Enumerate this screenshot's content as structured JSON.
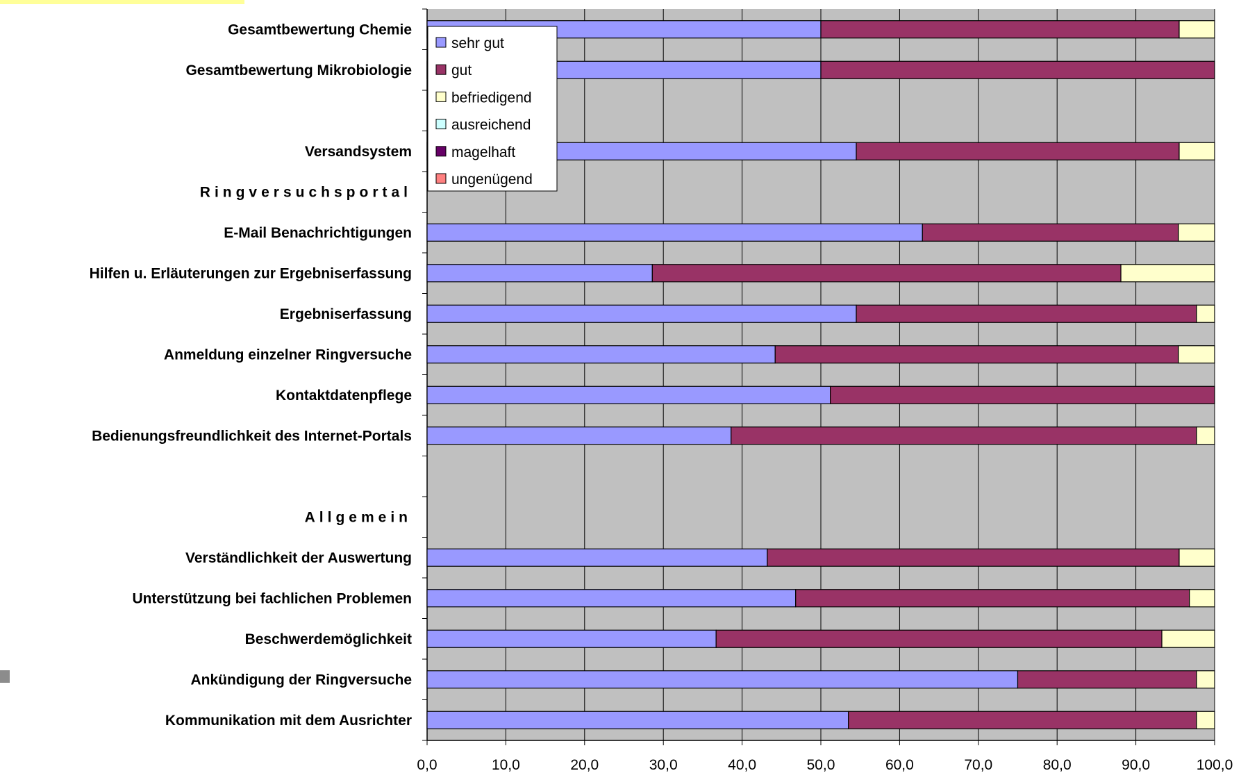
{
  "chart_data": {
    "type": "bar",
    "orientation": "horizontal",
    "stacked": true,
    "title": "",
    "xlabel": "",
    "ylabel": "",
    "xlim": [
      0,
      100
    ],
    "x_ticks": [
      "0,0",
      "10,0",
      "20,0",
      "30,0",
      "40,0",
      "50,0",
      "60,0",
      "70,0",
      "80,0",
      "90,0",
      "100,0"
    ],
    "grid": true,
    "legend_position": "top-left",
    "categories": [
      "Gesamtbewertung Chemie",
      "Gesamtbewertung Mikrobiologie",
      "",
      "Versandsystem",
      "Ringversuchsportal",
      "E-Mail Benachrichtigungen",
      "Hilfen u. Erläuterungen zur Ergebniserfassung",
      "Ergebniserfassung",
      "Anmeldung einzelner Ringversuche",
      "Kontaktdatenpflege",
      "Bedienungsfreundlichkeit des Internet-Portals",
      "",
      "Allgemein",
      "Verständlichkeit der Auswertung",
      "Unterstützung bei fachlichen Problemen",
      "Beschwerdemöglichkeit",
      "Ankündigung der Ringversuche",
      "Kommunikation mit dem Ausrichter"
    ],
    "section_headers": [
      "Ringversuchsportal",
      "Allgemein"
    ],
    "series": [
      {
        "name": "sehr gut",
        "color": "#9999ff",
        "values": [
          50.0,
          50.0,
          0,
          54.5,
          0,
          62.9,
          28.6,
          54.5,
          44.2,
          51.2,
          38.6,
          0,
          0,
          43.2,
          46.8,
          36.7,
          75.0,
          53.5
        ]
      },
      {
        "name": "gut",
        "color": "#993366",
        "values": [
          45.5,
          50.0,
          0,
          41.0,
          0,
          32.5,
          59.5,
          43.2,
          51.2,
          48.8,
          59.1,
          0,
          0,
          52.3,
          50.0,
          56.6,
          22.7,
          44.2
        ]
      },
      {
        "name": "befriedigend",
        "color": "#ffffcc",
        "values": [
          4.5,
          0,
          0,
          4.5,
          0,
          4.6,
          11.9,
          2.3,
          4.6,
          0,
          2.3,
          0,
          0,
          4.5,
          3.2,
          6.7,
          2.3,
          2.3
        ]
      },
      {
        "name": "ausreichend",
        "color": "#ccffff",
        "values": [
          0,
          0,
          0,
          0,
          0,
          0,
          0,
          0,
          0,
          0,
          0,
          0,
          0,
          0,
          0,
          0,
          0,
          0
        ]
      },
      {
        "name": "magelhaft",
        "color": "#660066",
        "values": [
          0,
          0,
          0,
          0,
          0,
          0,
          0,
          0,
          0,
          0,
          0,
          0,
          0,
          0,
          0,
          0,
          0,
          0
        ]
      },
      {
        "name": "ungenügend",
        "color": "#ff8080",
        "values": [
          0,
          0,
          0,
          0,
          0,
          0,
          0,
          0,
          0,
          0,
          0,
          0,
          0,
          0,
          0,
          0,
          0,
          0
        ]
      }
    ],
    "colors": {
      "plot_background": "#c0c0c0",
      "gridline": "#000000",
      "accent": "#ffff99"
    }
  }
}
